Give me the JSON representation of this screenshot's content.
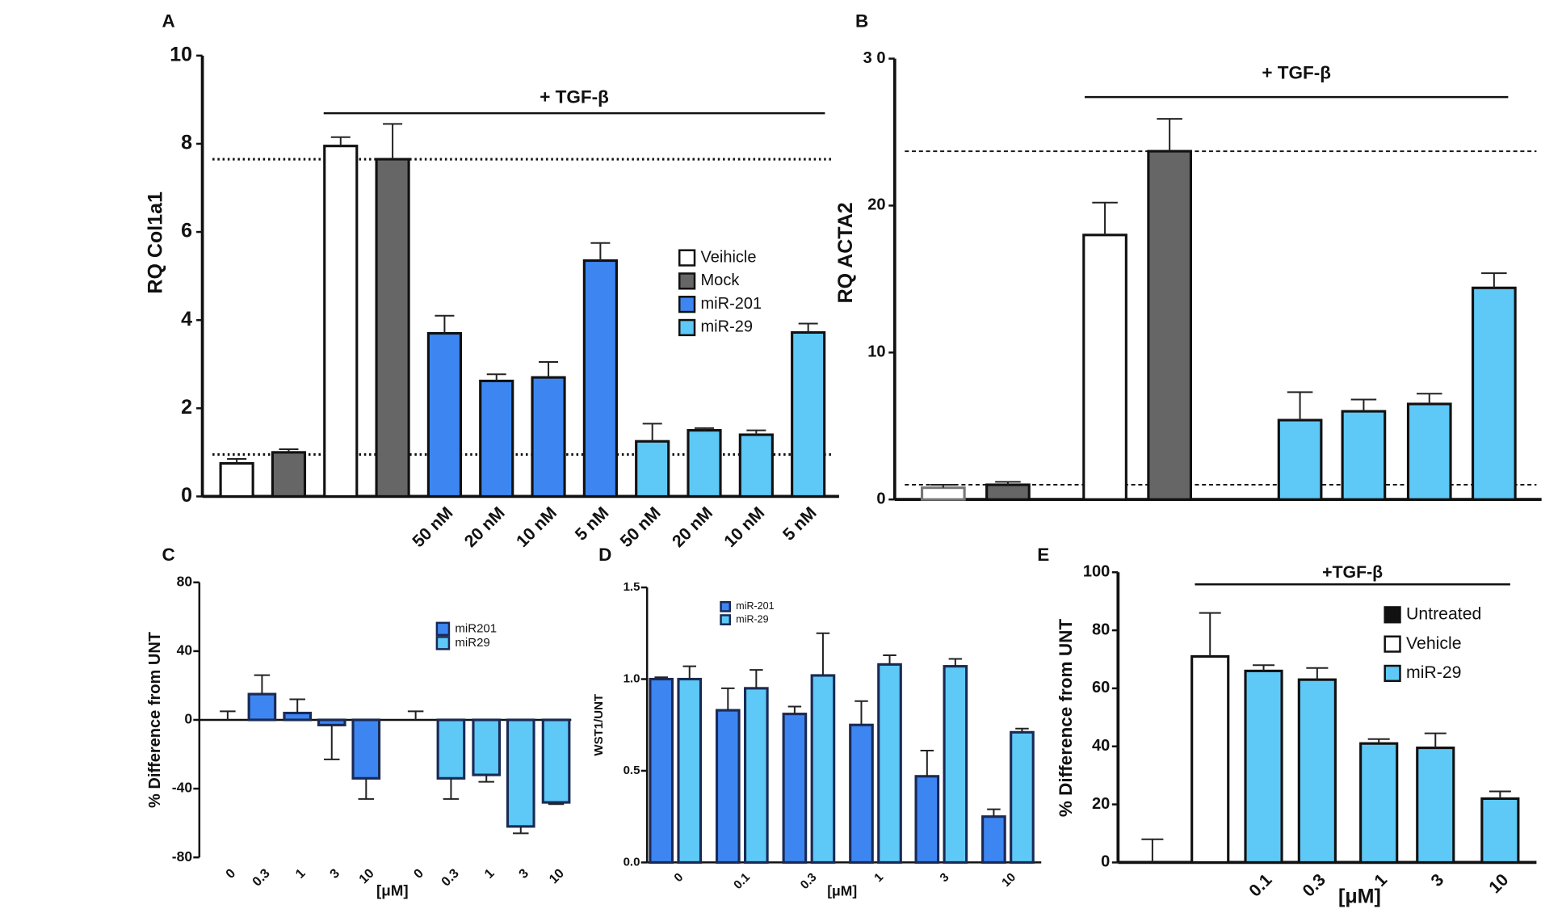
{
  "chart_data": [
    {
      "type": "bar",
      "panel": "A",
      "ylabel": "RQ Col1a1",
      "ylim": [
        0,
        10
      ],
      "yticks": [
        0,
        2,
        4,
        6,
        8,
        10
      ],
      "categories": [
        null,
        null,
        null,
        null,
        "50 nM",
        "20 nM",
        "10 nM",
        "5 nM",
        "50 nM",
        "20 nM",
        "10 nM",
        "5 nM"
      ],
      "annotation": "+ TGF-β",
      "reference_lines": [
        7.65,
        0.95
      ],
      "legend": "right",
      "series": [
        {
          "name": "Veihicle",
          "color": "#ffffff",
          "edgecolor": "#111111",
          "values": [
            0.75,
            null,
            7.95,
            null,
            null,
            null,
            null,
            null,
            null,
            null,
            null,
            null
          ],
          "errors": [
            0.1,
            null,
            0.2,
            null,
            null,
            null,
            null,
            null,
            null,
            null,
            null,
            null
          ]
        },
        {
          "name": "Mock",
          "color": "#666666",
          "edgecolor": "#111111",
          "values": [
            null,
            1.0,
            null,
            7.65,
            null,
            null,
            null,
            null,
            null,
            null,
            null,
            null
          ],
          "errors": [
            null,
            0.07,
            null,
            0.8,
            null,
            null,
            null,
            null,
            null,
            null,
            null,
            null
          ]
        },
        {
          "name": "miR-201",
          "color": "#3d86f2",
          "edgecolor": "#111111",
          "values": [
            null,
            null,
            null,
            null,
            3.7,
            2.62,
            2.7,
            5.35,
            null,
            null,
            null,
            null
          ],
          "errors": [
            null,
            null,
            null,
            null,
            0.4,
            0.15,
            0.35,
            0.4,
            null,
            null,
            null,
            null
          ]
        },
        {
          "name": "miR-29",
          "color": "#5ec9f6",
          "edgecolor": "#111111",
          "values": [
            null,
            null,
            null,
            null,
            null,
            null,
            null,
            null,
            1.25,
            1.5,
            1.4,
            3.72
          ],
          "errors": [
            null,
            null,
            null,
            null,
            null,
            null,
            null,
            null,
            0.4,
            0.05,
            0.1,
            0.2
          ]
        }
      ]
    },
    {
      "type": "bar",
      "panel": "B",
      "ylabel": "RQ ACTA2",
      "ylim": [
        0,
        30
      ],
      "yticks": [
        0,
        10,
        20,
        {
          "value": 30,
          "label": "3 0"
        }
      ],
      "categories": [
        null,
        null,
        null,
        null,
        null,
        null,
        null,
        null
      ],
      "annotation": "+ TGF-β",
      "reference_lines": [
        23.7,
        1.0
      ],
      "series": [
        {
          "color": "#ffffff",
          "edgecolor": "#777777",
          "values": [
            0.8,
            null,
            null,
            null,
            null,
            null,
            null,
            null
          ],
          "errors": [
            0.2,
            null,
            null,
            null,
            null,
            null,
            null,
            null
          ]
        },
        {
          "color": "#ffffff",
          "edgecolor": "#111111",
          "values": [
            null,
            null,
            18.0,
            null,
            null,
            null,
            null,
            null
          ],
          "errors": [
            null,
            null,
            2.2,
            null,
            null,
            null,
            null,
            null
          ]
        },
        {
          "color": "#666666",
          "edgecolor": "#111111",
          "values": [
            null,
            1.0,
            null,
            23.7,
            null,
            null,
            null,
            null
          ],
          "errors": [
            null,
            0.2,
            null,
            2.2,
            null,
            null,
            null,
            null
          ]
        },
        {
          "color": "#5ec9f6",
          "edgecolor": "#111111",
          "values": [
            null,
            null,
            null,
            null,
            5.4,
            6.0,
            6.5,
            14.4
          ],
          "errors": [
            null,
            null,
            null,
            null,
            1.9,
            0.8,
            0.7,
            1.0
          ]
        }
      ]
    },
    {
      "type": "bar",
      "panel": "C",
      "ylabel": "% Difference from UNT",
      "xlabel": "[μM]",
      "ylim": [
        -80,
        80
      ],
      "yticks": [
        -80,
        -40,
        0,
        40,
        80
      ],
      "categories": [
        "0",
        "0.3",
        "1",
        "3",
        "10",
        "0",
        "0.3",
        "1",
        "3",
        "10"
      ],
      "legend": "upper right",
      "series": [
        {
          "name": "miR201",
          "color": "#3d86f2",
          "edgecolor": "#1a2a55",
          "values": [
            0,
            15,
            4,
            -3,
            -34,
            null,
            null,
            null,
            null,
            null
          ],
          "errors": [
            5,
            11,
            8,
            20,
            12,
            null,
            null,
            null,
            null,
            null
          ]
        },
        {
          "name": "miR29",
          "color": "#5ec9f6",
          "edgecolor": "#1a2a55",
          "values": [
            null,
            null,
            null,
            null,
            null,
            0,
            -34,
            -32,
            -62,
            -48
          ],
          "errors": [
            null,
            null,
            null,
            null,
            null,
            5,
            12,
            4,
            4,
            1
          ]
        }
      ]
    },
    {
      "type": "bar",
      "panel": "D",
      "ylabel": "WST1/UNT",
      "xlabel": "[μM]",
      "ylim": [
        0,
        1.5
      ],
      "yticks": [
        {
          "value": 0,
          "label": "0.0"
        },
        0.5,
        {
          "value": 1,
          "label": "1.0"
        },
        1.5
      ],
      "categories": [
        "0",
        "0.1",
        "0.3",
        "1",
        "3",
        "10"
      ],
      "legend": "upper left",
      "series": [
        {
          "name": "miR-201",
          "color": "#3d86f2",
          "edgecolor": "#1a2a55",
          "values": [
            1.0,
            0.83,
            0.81,
            0.75,
            0.47,
            0.25
          ],
          "errors": [
            0.01,
            0.12,
            0.04,
            0.13,
            0.14,
            0.04
          ]
        },
        {
          "name": "miR-29",
          "color": "#5ec9f6",
          "edgecolor": "#1a2a55",
          "values": [
            1.0,
            0.95,
            1.02,
            1.08,
            1.07,
            0.71
          ],
          "errors": [
            0.07,
            0.1,
            0.23,
            0.05,
            0.04,
            0.02
          ]
        }
      ]
    },
    {
      "type": "bar",
      "panel": "E",
      "ylabel": "% Difference from UNT",
      "xlabel": "[μM]",
      "ylim": [
        0,
        100
      ],
      "yticks": [
        0,
        20,
        40,
        60,
        80,
        100
      ],
      "categories": [
        null,
        null,
        "0.1",
        "0.3",
        "1",
        "3",
        "10"
      ],
      "annotation": "+TGF-β",
      "legend": "upper right",
      "series": [
        {
          "name": "Untreated",
          "color": "#111111",
          "edgecolor": "#111111",
          "values": [
            0,
            null,
            null,
            null,
            null,
            null,
            null
          ],
          "errors": [
            8,
            null,
            null,
            null,
            null,
            null,
            null
          ]
        },
        {
          "name": "Vehicle",
          "color": "#ffffff",
          "edgecolor": "#111111",
          "values": [
            null,
            71,
            null,
            null,
            null,
            null,
            null
          ],
          "errors": [
            null,
            15,
            null,
            null,
            null,
            null,
            null
          ]
        },
        {
          "name": "miR-29",
          "color": "#5ec9f6",
          "edgecolor": "#111111",
          "values": [
            null,
            null,
            66,
            63,
            41,
            39.5,
            22
          ],
          "errors": [
            null,
            null,
            2,
            4,
            1.5,
            5,
            2.5
          ]
        }
      ]
    }
  ]
}
